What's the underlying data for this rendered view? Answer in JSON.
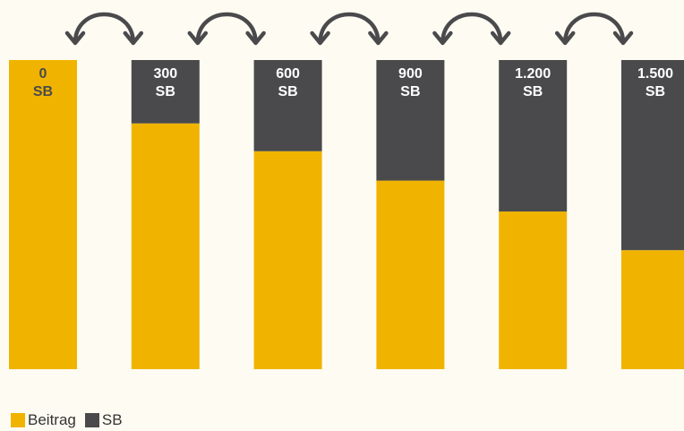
{
  "chart_data": {
    "type": "bar",
    "stacked": true,
    "categories": [
      "0",
      "300",
      "600",
      "900",
      "1.200",
      "1.500"
    ],
    "bar_labels": [
      {
        "value": "0",
        "unit": "SB"
      },
      {
        "value": "300",
        "unit": "SB"
      },
      {
        "value": "600",
        "unit": "SB"
      },
      {
        "value": "900",
        "unit": "SB"
      },
      {
        "value": "1.200",
        "unit": "SB"
      },
      {
        "value": "1.500",
        "unit": "SB"
      }
    ],
    "series": [
      {
        "name": "Beitrag",
        "color": "#f0b400",
        "values": [
          100,
          79.5,
          70.5,
          61,
          51,
          38.5
        ]
      },
      {
        "name": "SB",
        "color": "#4a4a4c",
        "values": [
          0,
          20.5,
          29.5,
          39,
          49,
          61.5
        ]
      }
    ],
    "ylim": [
      0,
      100
    ],
    "grid": false,
    "legend_position": "bottom-left",
    "annotations": "curved double-headed arrows between adjacent bars",
    "arrow_color": "#4a4a4c"
  }
}
